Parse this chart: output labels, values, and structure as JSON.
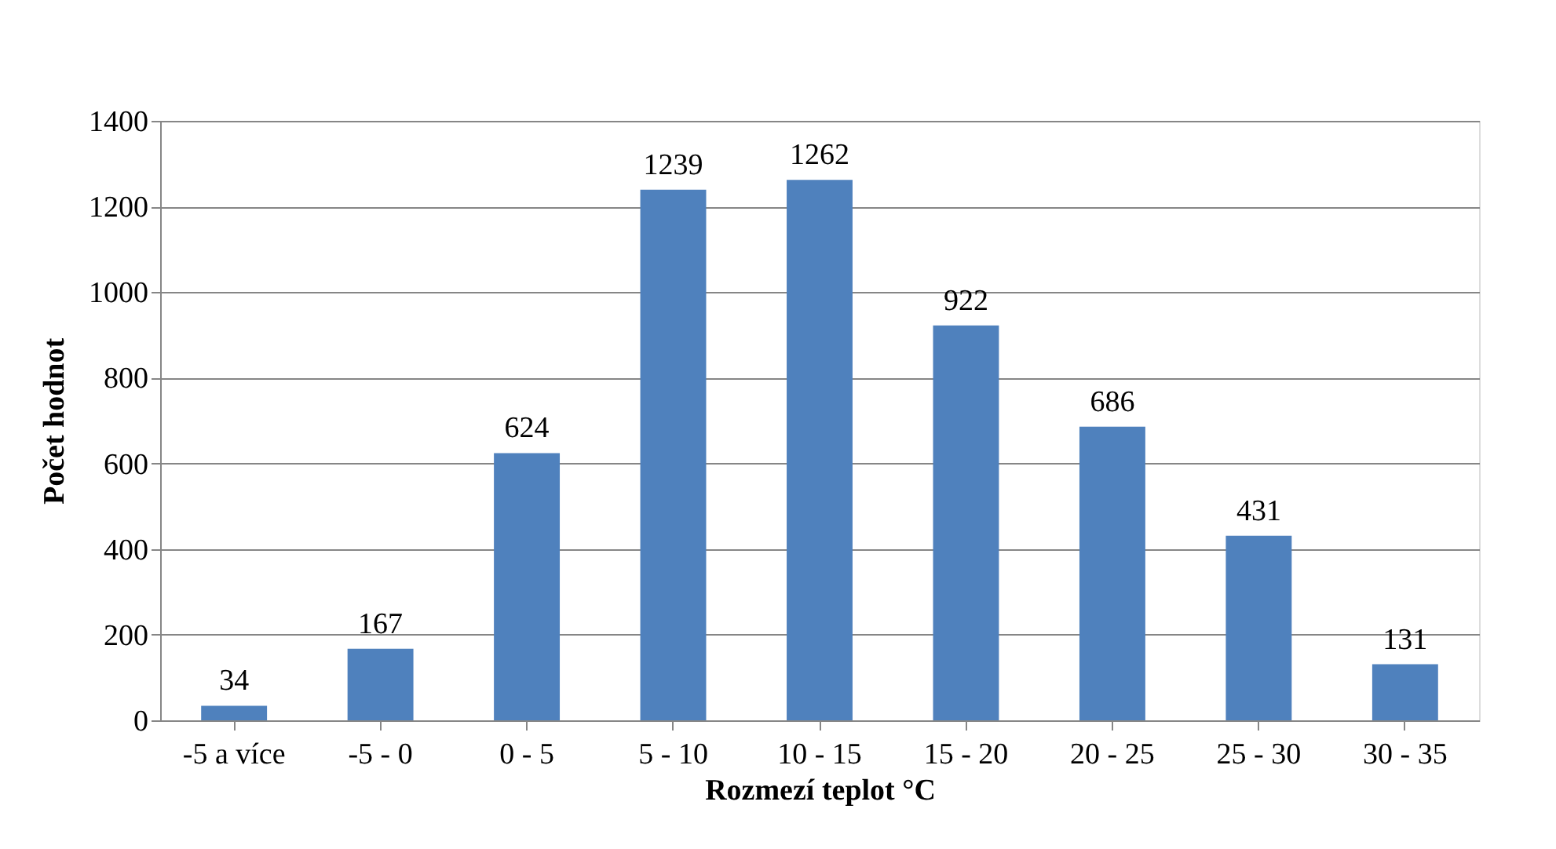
{
  "chart_data": {
    "type": "bar",
    "xlabel": "Rozmezí teplot °C",
    "ylabel": "Počet hodnot",
    "categories": [
      "-5 a více",
      "-5 - 0",
      "0 - 5",
      "5 - 10",
      "10 - 15",
      "15 - 20",
      "20 - 25",
      "25 - 30",
      "30 - 35"
    ],
    "values": [
      34,
      167,
      624,
      1239,
      1262,
      922,
      686,
      431,
      131
    ],
    "color": "#4f81bd",
    "ylim": [
      0,
      1400
    ],
    "yticks": [
      0,
      200,
      400,
      600,
      800,
      1000,
      1200,
      1400
    ],
    "grid": "y",
    "data_labels": true
  }
}
